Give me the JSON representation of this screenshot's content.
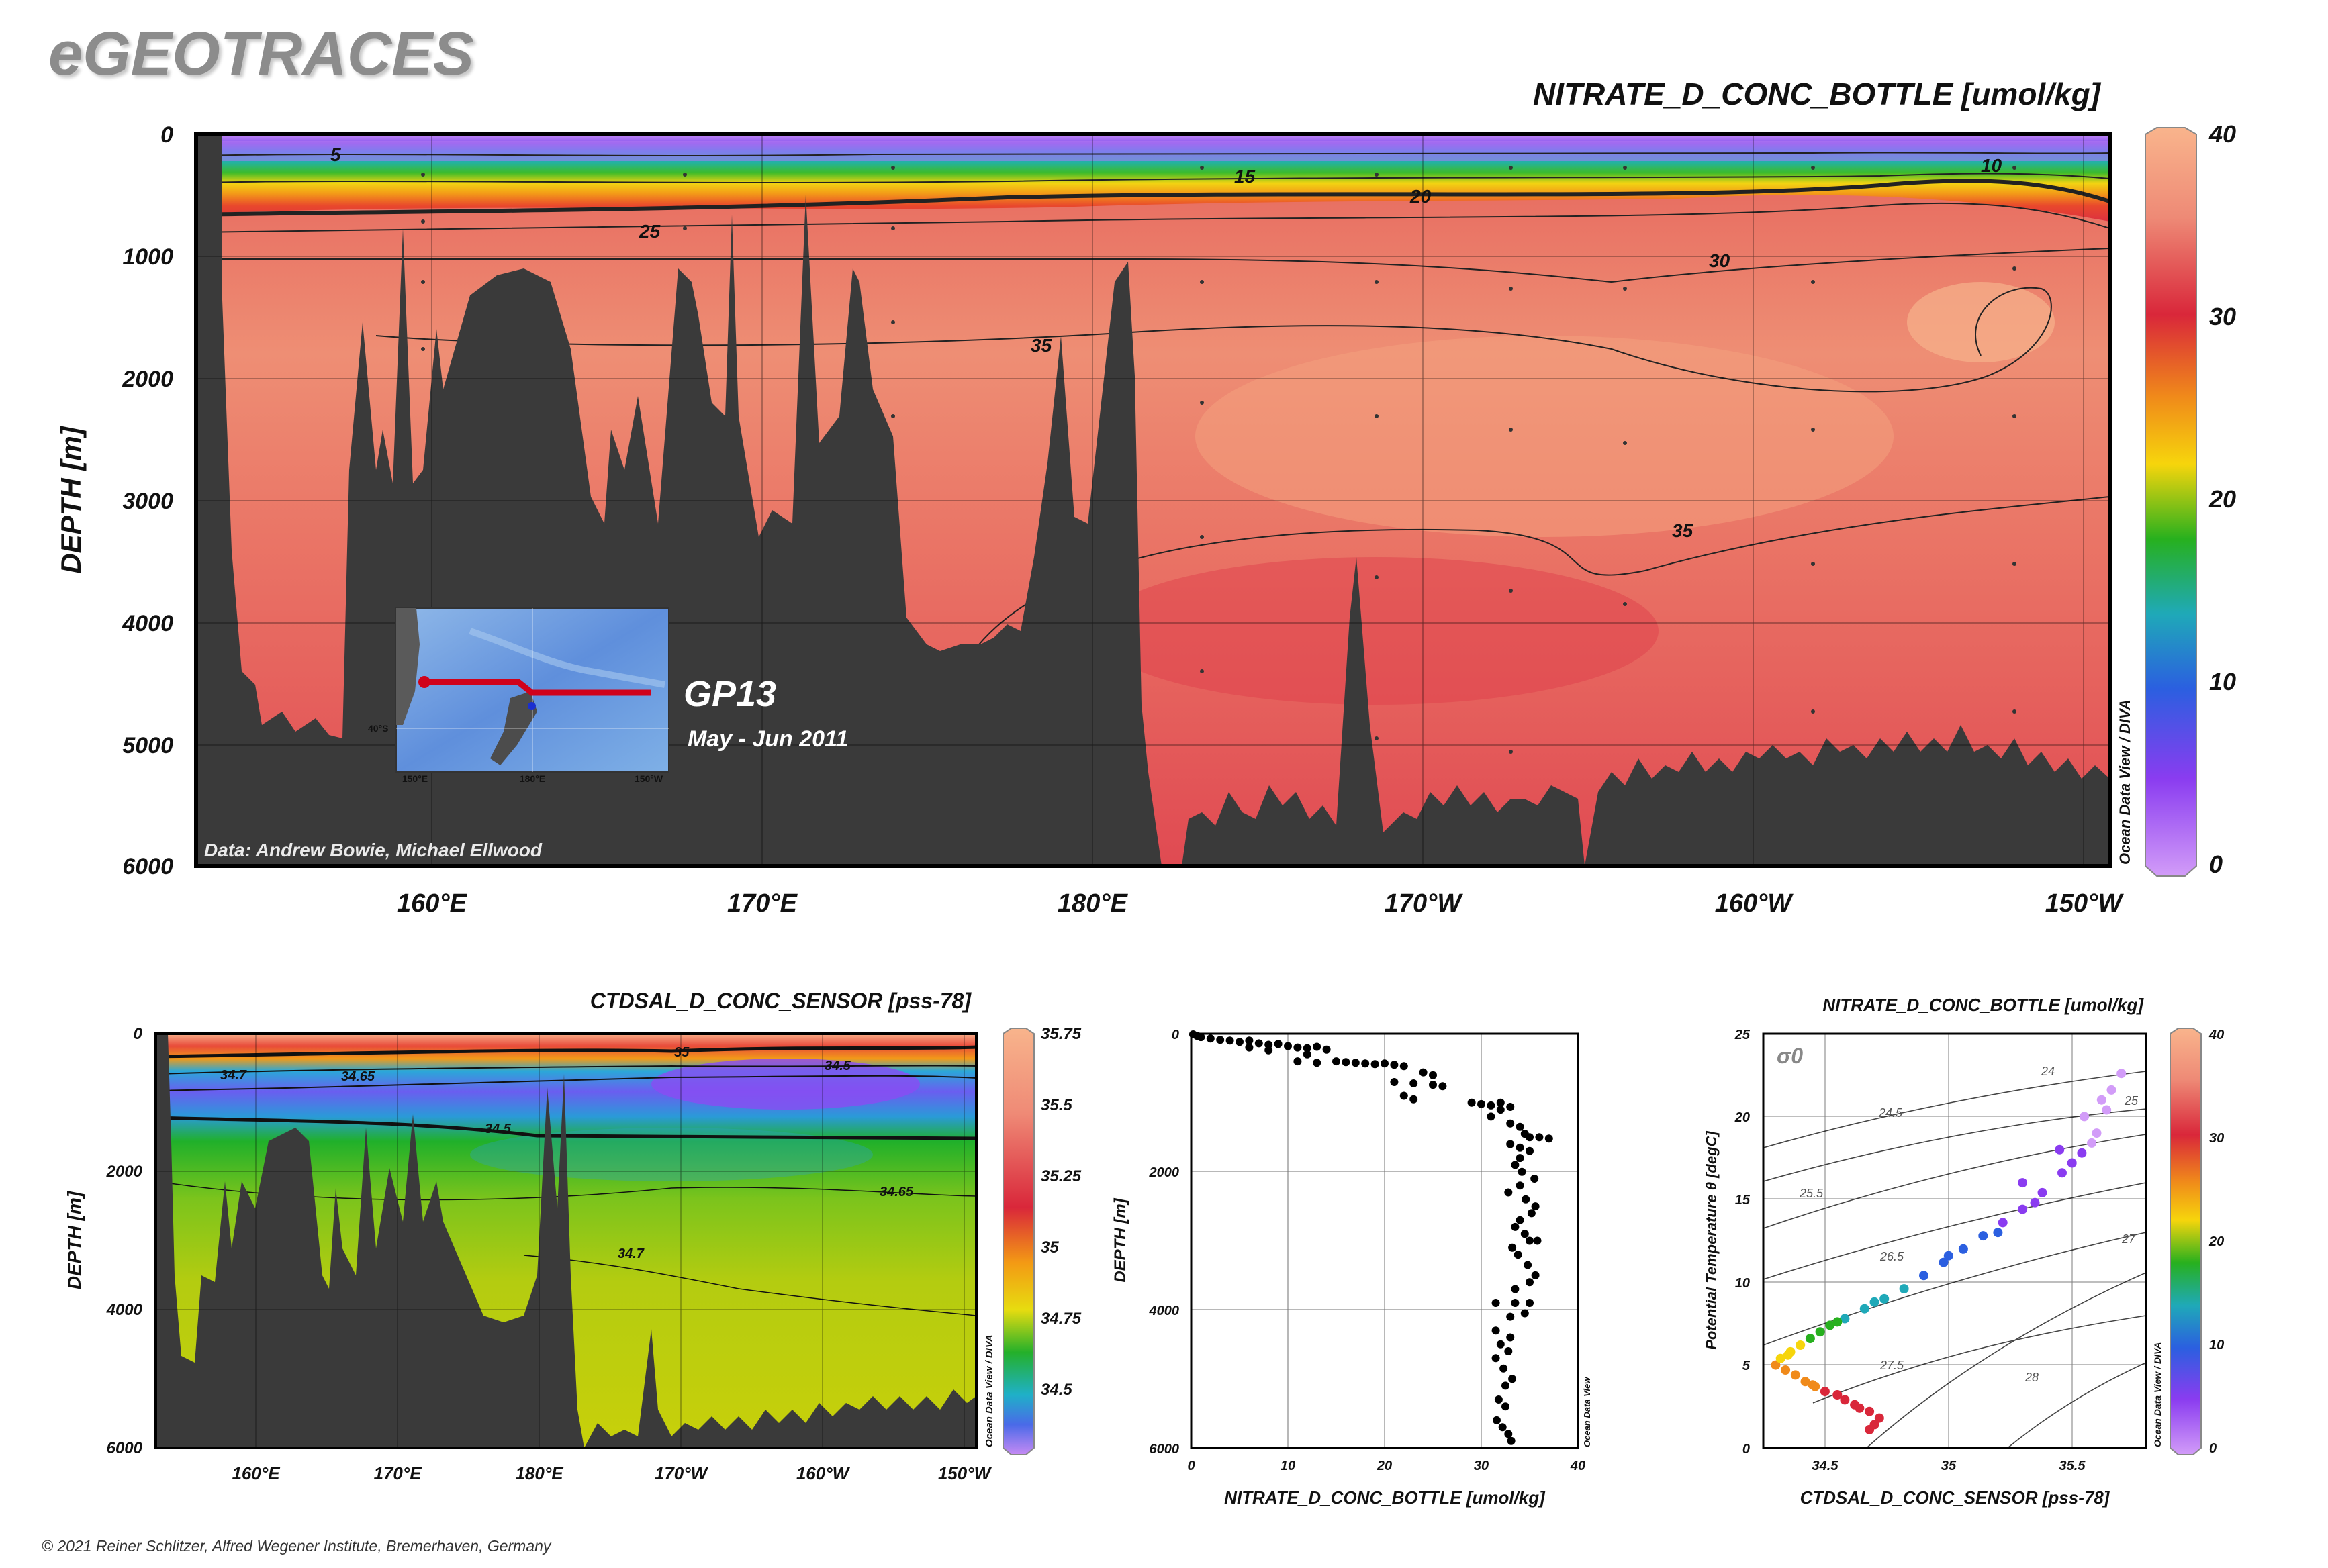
{
  "brand": "eGEOTRACES",
  "copyright": "© 2021 Reiner Schlitzer, Alfred Wegener Institute, Bremerhaven, Germany",
  "colors": {
    "ocean": "#e85a5e",
    "bathymetry": "#3a3a3a",
    "section_line": "#d0021b",
    "scatter_points": "#000000"
  },
  "chart_data": [
    {
      "id": "main-section",
      "type": "heatmap",
      "title": "NITRATE_D_CONC_BOTTLE [umol/kg]",
      "ylabel": "DEPTH [m]",
      "x_ticks": [
        "160°E",
        "170°E",
        "180°E",
        "170°W",
        "160°W",
        "150°W"
      ],
      "y_ticks": [
        "0",
        "1000",
        "2000",
        "3000",
        "4000",
        "5000",
        "6000"
      ],
      "ylim": [
        0,
        6000
      ],
      "colorbar": {
        "ticks": [
          "40",
          "30",
          "20",
          "10",
          "0"
        ],
        "range": [
          0,
          40
        ]
      },
      "contour_labels": [
        "5",
        "15",
        "10",
        "20",
        "25",
        "30",
        "35",
        "35"
      ],
      "side_label": "Ocean Data View / DIVA",
      "credit": "Data: Andrew Bowie, Michael Ellwood",
      "inset": {
        "cruise": "GP13",
        "dates": "May - Jun 2011",
        "lat_label": "40°S",
        "lon_labels": [
          "150°E",
          "180°E",
          "150°W"
        ]
      }
    },
    {
      "id": "salinity-section",
      "type": "heatmap",
      "title": "CTDSAL_D_CONC_SENSOR [pss-78]",
      "ylabel": "DEPTH [m]",
      "x_ticks": [
        "160°E",
        "170°E",
        "180°E",
        "170°W",
        "160°W",
        "150°W"
      ],
      "y_ticks": [
        "0",
        "2000",
        "4000",
        "6000"
      ],
      "ylim": [
        0,
        6000
      ],
      "colorbar": {
        "ticks": [
          "35.75",
          "35.5",
          "35.25",
          "35",
          "34.75",
          "34.5"
        ],
        "range": [
          34.3,
          35.75
        ]
      },
      "contour_labels": [
        "35",
        "34.7",
        "34.65",
        "34.5",
        "34.5",
        "34.65",
        "34.7"
      ],
      "side_label": "Ocean Data View / DIVA"
    },
    {
      "id": "nitrate-profile",
      "type": "scatter",
      "xlabel": "NITRATE_D_CONC_BOTTLE [umol/kg]",
      "ylabel": "DEPTH [m]",
      "x_ticks": [
        "0",
        "10",
        "20",
        "30",
        "40"
      ],
      "y_ticks": [
        "0",
        "2000",
        "4000",
        "6000"
      ],
      "xlim": [
        0,
        40
      ],
      "ylim": [
        0,
        6000
      ],
      "side_label": "Ocean Data View",
      "points": [
        [
          0.2,
          10
        ],
        [
          0.6,
          30
        ],
        [
          1,
          50
        ],
        [
          2,
          70
        ],
        [
          3,
          90
        ],
        [
          4,
          100
        ],
        [
          5,
          120
        ],
        [
          6,
          100
        ],
        [
          7,
          140
        ],
        [
          8,
          160
        ],
        [
          9,
          150
        ],
        [
          10,
          180
        ],
        [
          11,
          200
        ],
        [
          12,
          210
        ],
        [
          13,
          190
        ],
        [
          14,
          230
        ],
        [
          6,
          200
        ],
        [
          8,
          240
        ],
        [
          12,
          300
        ],
        [
          11,
          400
        ],
        [
          13,
          420
        ],
        [
          15,
          400
        ],
        [
          16,
          410
        ],
        [
          17,
          420
        ],
        [
          18,
          430
        ],
        [
          19,
          440
        ],
        [
          20,
          430
        ],
        [
          21,
          450
        ],
        [
          22,
          470
        ],
        [
          24,
          560
        ],
        [
          25,
          600
        ],
        [
          21,
          700
        ],
        [
          23,
          720
        ],
        [
          25,
          740
        ],
        [
          26,
          760
        ],
        [
          22,
          900
        ],
        [
          23,
          950
        ],
        [
          29,
          1000
        ],
        [
          30,
          1020
        ],
        [
          31,
          1040
        ],
        [
          32,
          1000
        ],
        [
          33,
          1060
        ],
        [
          32,
          1100
        ],
        [
          31,
          1200
        ],
        [
          33,
          1300
        ],
        [
          34,
          1350
        ],
        [
          34.5,
          1450
        ],
        [
          35,
          1500
        ],
        [
          36,
          1500
        ],
        [
          37,
          1520
        ],
        [
          33,
          1600
        ],
        [
          34,
          1650
        ],
        [
          35,
          1700
        ],
        [
          34,
          1800
        ],
        [
          33.5,
          1900
        ],
        [
          34.2,
          2000
        ],
        [
          35.5,
          2100
        ],
        [
          34,
          2200
        ],
        [
          32.8,
          2300
        ],
        [
          34.6,
          2400
        ],
        [
          35.6,
          2500
        ],
        [
          35.2,
          2600
        ],
        [
          34,
          2700
        ],
        [
          33.5,
          2800
        ],
        [
          34.5,
          2900
        ],
        [
          35,
          3000
        ],
        [
          35.8,
          3000
        ],
        [
          33.2,
          3100
        ],
        [
          33.8,
          3200
        ],
        [
          34.8,
          3350
        ],
        [
          35.6,
          3500
        ],
        [
          35,
          3600
        ],
        [
          33.5,
          3700
        ],
        [
          31.5,
          3900
        ],
        [
          33.5,
          3900
        ],
        [
          35,
          3900
        ],
        [
          34.5,
          4050
        ],
        [
          33,
          4100
        ],
        [
          31.5,
          4300
        ],
        [
          33,
          4400
        ],
        [
          32,
          4500
        ],
        [
          32.8,
          4600
        ],
        [
          31.5,
          4700
        ],
        [
          32.3,
          4850
        ],
        [
          33.2,
          5000
        ],
        [
          32.5,
          5100
        ],
        [
          31.8,
          5300
        ],
        [
          32.5,
          5400
        ],
        [
          31.6,
          5600
        ],
        [
          32.2,
          5700
        ],
        [
          32.8,
          5800
        ],
        [
          33.1,
          5900
        ]
      ]
    },
    {
      "id": "ts-diagram",
      "type": "scatter",
      "title": "NITRATE_D_CONC_BOTTLE [umol/kg]",
      "xlabel": "CTDSAL_D_CONC_SENSOR [pss-78]",
      "ylabel": "Potential Temperature θ [degC]",
      "x_ticks": [
        "34.5",
        "35",
        "35.5"
      ],
      "y_ticks": [
        "0",
        "5",
        "10",
        "15",
        "20",
        "25"
      ],
      "xlim": [
        34.25,
        35.8
      ],
      "ylim": [
        0,
        25
      ],
      "sigma_label": "σ0",
      "isopycnal_labels": [
        "24",
        "24.5",
        "25",
        "25.5",
        "26.5",
        "27",
        "27.5",
        "28"
      ],
      "colorbar": {
        "ticks": [
          "40",
          "30",
          "20",
          "10",
          "0"
        ],
        "range": [
          0,
          40
        ]
      },
      "side_label": "Ocean Data View / DIVA",
      "points_s_t_n": [
        [
          34.68,
          1.1,
          34
        ],
        [
          34.7,
          1.4,
          34
        ],
        [
          34.72,
          1.8,
          33
        ],
        [
          34.68,
          2.2,
          32
        ],
        [
          34.62,
          2.6,
          32
        ],
        [
          34.58,
          2.9,
          31
        ],
        [
          34.55,
          3.2,
          30
        ],
        [
          34.5,
          3.4,
          30
        ],
        [
          34.46,
          3.7,
          29
        ],
        [
          34.42,
          4.0,
          28
        ],
        [
          34.38,
          4.4,
          28
        ],
        [
          34.34,
          4.7,
          27
        ],
        [
          34.3,
          5.0,
          26
        ],
        [
          34.32,
          5.4,
          25
        ],
        [
          34.36,
          5.8,
          24
        ],
        [
          34.4,
          6.2,
          22
        ],
        [
          34.44,
          6.6,
          20
        ],
        [
          34.48,
          7.0,
          19
        ],
        [
          34.52,
          7.4,
          18
        ],
        [
          34.58,
          7.8,
          17
        ],
        [
          34.66,
          8.4,
          16
        ],
        [
          34.74,
          9.0,
          15
        ],
        [
          34.82,
          9.6,
          14
        ],
        [
          34.9,
          10.4,
          13
        ],
        [
          34.98,
          11.2,
          12
        ],
        [
          35.06,
          12.0,
          11
        ],
        [
          35.14,
          12.8,
          10
        ],
        [
          35.22,
          13.6,
          9
        ],
        [
          35.3,
          14.4,
          8
        ],
        [
          35.38,
          15.4,
          7
        ],
        [
          35.46,
          16.6,
          6
        ],
        [
          35.54,
          17.8,
          5
        ],
        [
          35.6,
          19.0,
          4
        ],
        [
          35.64,
          20.4,
          3
        ],
        [
          35.66,
          21.6,
          2
        ],
        [
          35.7,
          22.6,
          1
        ],
        [
          34.64,
          2.4,
          33
        ],
        [
          34.45,
          3.8,
          29
        ],
        [
          34.35,
          5.6,
          24
        ],
        [
          34.55,
          7.6,
          18
        ],
        [
          34.7,
          8.8,
          16
        ],
        [
          35.0,
          11.6,
          12
        ],
        [
          35.2,
          13.0,
          10
        ],
        [
          35.35,
          14.8,
          8
        ],
        [
          35.5,
          17.2,
          6
        ],
        [
          35.58,
          18.4,
          4
        ],
        [
          35.62,
          21.0,
          2
        ],
        [
          35.3,
          16.0,
          7
        ],
        [
          35.45,
          18.0,
          5
        ],
        [
          35.55,
          20.0,
          3
        ]
      ]
    }
  ]
}
